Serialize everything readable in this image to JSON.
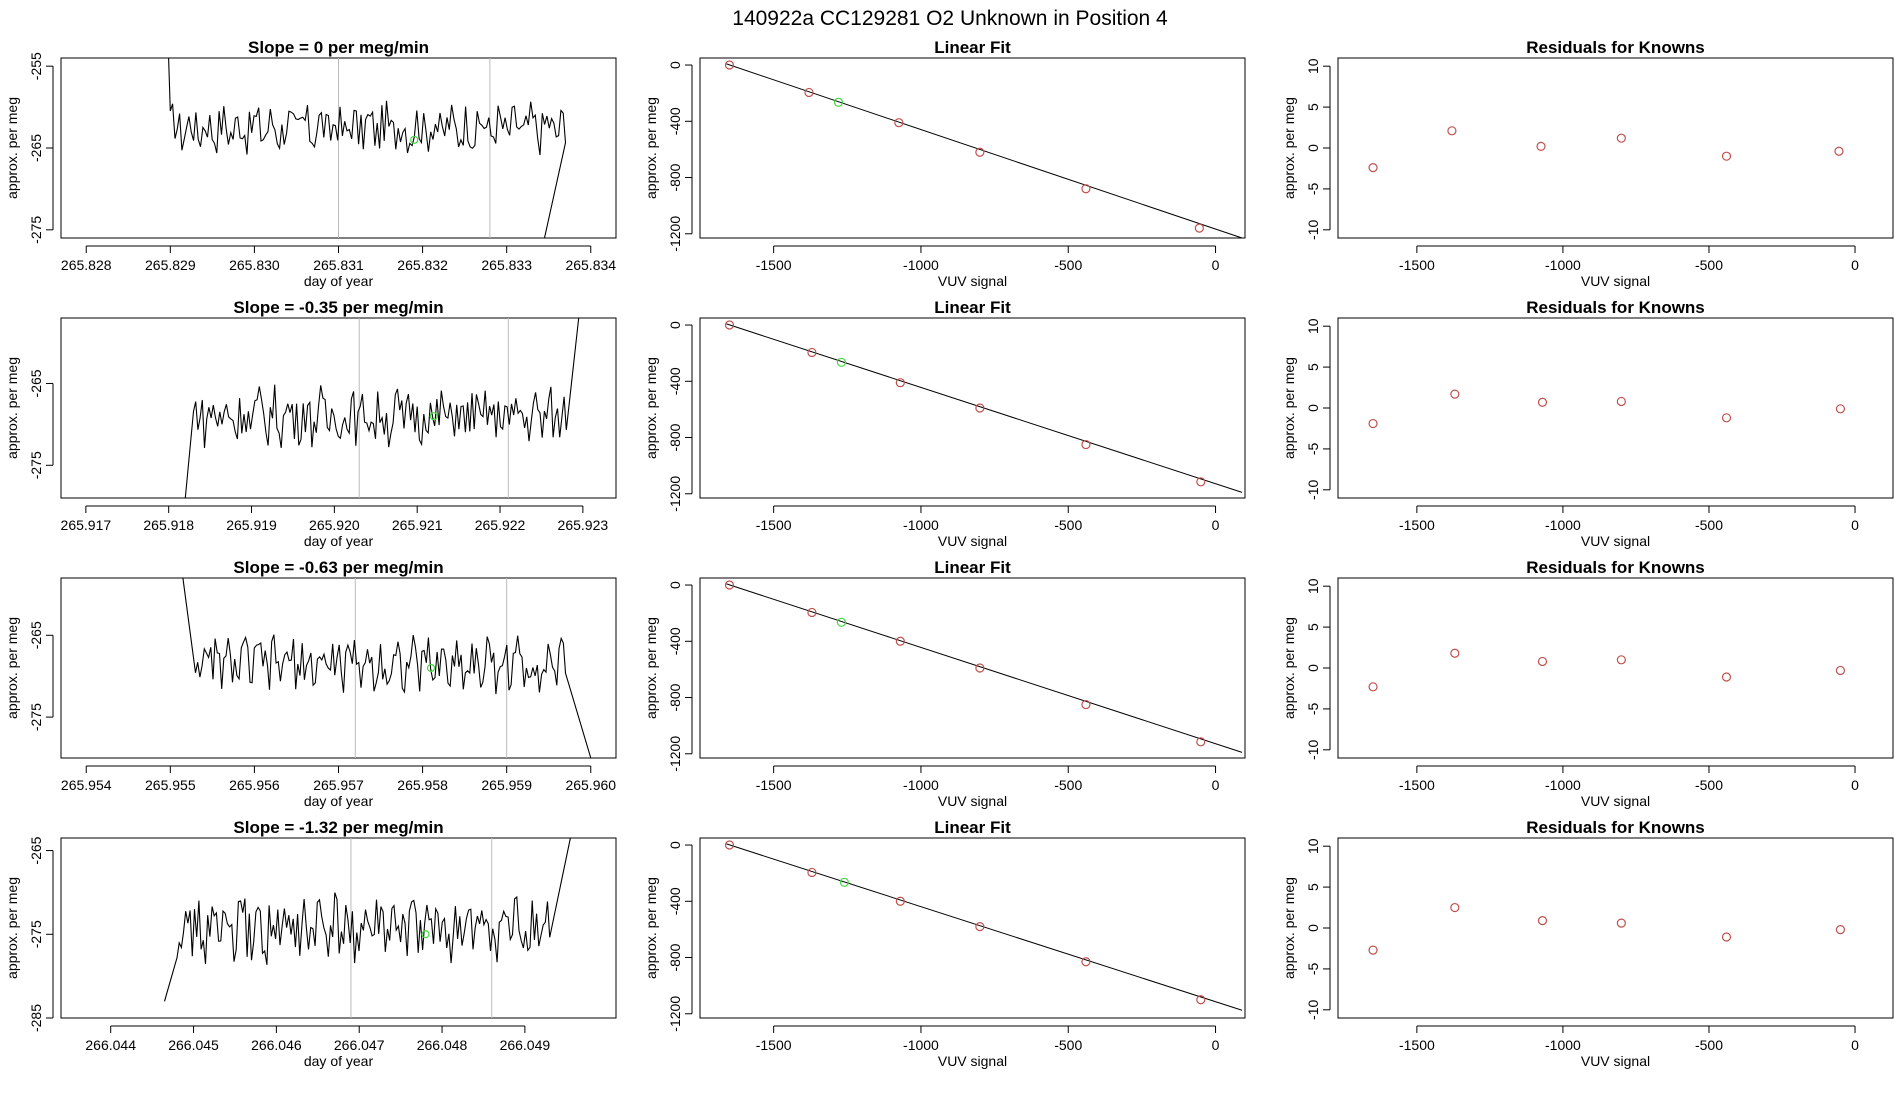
{
  "figure": {
    "title": "140922a      CC129281   O2 Unknown in Position  4",
    "colors": {
      "line": "#000000",
      "known_point": "#c0504d",
      "unknown_point": "#3fdc3f",
      "vline": "#bbbbbb"
    }
  },
  "chart_data": [
    {
      "type": "line",
      "panel": "slope-1",
      "title": "Slope =  0  per meg/min",
      "xlabel": "day of year",
      "ylabel": "approx. per meg",
      "xlim": [
        265.8277,
        265.8343
      ],
      "ylim": [
        -276,
        -254
      ],
      "xticks": [
        265.828,
        265.829,
        265.83,
        265.831,
        265.832,
        265.833,
        265.834
      ],
      "xtick_labels": [
        "265.828",
        "265.829",
        "265.830",
        "265.831",
        "265.832",
        "265.833",
        "265.834"
      ],
      "yticks": [
        -255,
        -265,
        -275
      ],
      "ytick_labels": [
        "-255",
        "-265",
        "-275"
      ],
      "x_start": 265.829,
      "x_end": 265.8337,
      "y_mean": -262.5,
      "y_amp": 2.6,
      "rise_start": -254,
      "rise_x": 265.82898,
      "fall_end": -276,
      "fall_x": 265.83345,
      "vlines": [
        265.831,
        265.8328
      ],
      "marker": {
        "x": 265.8319,
        "y": -264
      }
    },
    {
      "type": "scatter",
      "panel": "fit-1",
      "title": "Linear Fit",
      "xlabel": "VUV signal",
      "ylabel": "approx. per meg",
      "xlim": [
        -1750,
        100
      ],
      "ylim": [
        -1230,
        50
      ],
      "xticks": [
        -1500,
        -1000,
        -500,
        0
      ],
      "xtick_labels": [
        "-1500",
        "-1000",
        "-500",
        "0"
      ],
      "yticks": [
        0,
        -400,
        -800,
        -1200
      ],
      "ytick_labels": [
        "0",
        "-400",
        "-800",
        "-1200"
      ],
      "knowns": [
        [
          -1650,
          0
        ],
        [
          -1380,
          -195
        ],
        [
          -1075,
          -410
        ],
        [
          -800,
          -620
        ],
        [
          -440,
          -880
        ],
        [
          -55,
          -1160
        ]
      ],
      "unknown": [
        -1280,
        -265
      ],
      "fit_line": [
        [
          -1660,
          8
        ],
        [
          90,
          -1230
        ]
      ]
    },
    {
      "type": "scatter",
      "panel": "resid-1",
      "title": "Residuals for Knowns",
      "xlabel": "VUV signal",
      "ylabel": "approx. per meg",
      "xlim": [
        -1770,
        130
      ],
      "ylim": [
        -11,
        11
      ],
      "xticks": [
        -1500,
        -1000,
        -500,
        0
      ],
      "xtick_labels": [
        "-1500",
        "-1000",
        "-500",
        "0"
      ],
      "yticks": [
        10,
        5,
        0,
        -5,
        -10
      ],
      "ytick_labels": [
        "10",
        "5",
        "0",
        "-5",
        "-10"
      ],
      "points": [
        [
          -1650,
          -2.4
        ],
        [
          -1380,
          2.1
        ],
        [
          -1075,
          0.2
        ],
        [
          -800,
          1.2
        ],
        [
          -440,
          -1.0
        ],
        [
          -55,
          -0.4
        ]
      ]
    },
    {
      "type": "line",
      "panel": "slope-2",
      "title": "Slope =  -0.35  per meg/min",
      "xlabel": "day of year",
      "ylabel": "approx. per meg",
      "xlim": [
        265.9167,
        265.9234
      ],
      "ylim": [
        -279,
        -257
      ],
      "xticks": [
        265.917,
        265.918,
        265.919,
        265.92,
        265.921,
        265.922,
        265.923
      ],
      "xtick_labels": [
        "265.917",
        "265.918",
        "265.919",
        "265.920",
        "265.921",
        "265.922",
        "265.923"
      ],
      "yticks": [
        -265,
        -275
      ],
      "ytick_labels": [
        "-265",
        "-275"
      ],
      "x_start": 265.9183,
      "x_end": 265.9228,
      "y_mean": -269,
      "y_amp": 3,
      "rise_start": -279,
      "rise_x": 265.9182,
      "fall_end": -256,
      "fall_x": 265.92295,
      "vlines": [
        265.9203,
        265.9221
      ],
      "marker": {
        "x": 265.9212,
        "y": -269
      }
    },
    {
      "type": "scatter",
      "panel": "fit-2",
      "title": "Linear Fit",
      "xlabel": "VUV signal",
      "ylabel": "approx. per meg",
      "xlim": [
        -1750,
        100
      ],
      "ylim": [
        -1230,
        50
      ],
      "xticks": [
        -1500,
        -1000,
        -500,
        0
      ],
      "xtick_labels": [
        "-1500",
        "-1000",
        "-500",
        "0"
      ],
      "yticks": [
        0,
        -400,
        -800,
        -1200
      ],
      "ytick_labels": [
        "0",
        "-400",
        "-800",
        "-1200"
      ],
      "knowns": [
        [
          -1650,
          0
        ],
        [
          -1370,
          -195
        ],
        [
          -1070,
          -410
        ],
        [
          -800,
          -590
        ],
        [
          -440,
          -850
        ],
        [
          -50,
          -1115
        ]
      ],
      "unknown": [
        -1270,
        -265
      ],
      "fit_line": [
        [
          -1660,
          8
        ],
        [
          90,
          -1190
        ]
      ]
    },
    {
      "type": "scatter",
      "panel": "resid-2",
      "title": "Residuals for Knowns",
      "xlabel": "VUV signal",
      "ylabel": "approx. per meg",
      "xlim": [
        -1770,
        130
      ],
      "ylim": [
        -11,
        11
      ],
      "xticks": [
        -1500,
        -1000,
        -500,
        0
      ],
      "xtick_labels": [
        "-1500",
        "-1000",
        "-500",
        "0"
      ],
      "yticks": [
        10,
        5,
        0,
        -5,
        -10
      ],
      "ytick_labels": [
        "10",
        "5",
        "0",
        "-5",
        "-10"
      ],
      "points": [
        [
          -1650,
          -1.9
        ],
        [
          -1370,
          1.7
        ],
        [
          -1070,
          0.7
        ],
        [
          -800,
          0.8
        ],
        [
          -440,
          -1.2
        ],
        [
          -50,
          -0.1
        ]
      ]
    },
    {
      "type": "line",
      "panel": "slope-3",
      "title": "Slope =  -0.63  per meg/min",
      "xlabel": "day of year",
      "ylabel": "approx. per meg",
      "xlim": [
        265.9537,
        265.9603
      ],
      "ylim": [
        -280,
        -258
      ],
      "xticks": [
        265.954,
        265.955,
        265.956,
        265.957,
        265.958,
        265.959,
        265.96
      ],
      "xtick_labels": [
        "265.954",
        "265.955",
        "265.956",
        "265.957",
        "265.958",
        "265.959",
        "265.960"
      ],
      "yticks": [
        -265,
        -275
      ],
      "ytick_labels": [
        "-265",
        "-275"
      ],
      "x_start": 265.9553,
      "x_end": 265.9597,
      "y_mean": -268.5,
      "y_amp": 2.8,
      "rise_start": -258,
      "rise_x": 265.95515,
      "fall_end": -280,
      "fall_x": 265.96,
      "vlines": [
        265.9572,
        265.959
      ],
      "marker": {
        "x": 265.9581,
        "y": -269
      }
    },
    {
      "type": "scatter",
      "panel": "fit-3",
      "title": "Linear Fit",
      "xlabel": "VUV signal",
      "ylabel": "approx. per meg",
      "xlim": [
        -1750,
        100
      ],
      "ylim": [
        -1230,
        50
      ],
      "xticks": [
        -1500,
        -1000,
        -500,
        0
      ],
      "xtick_labels": [
        "-1500",
        "-1000",
        "-500",
        "0"
      ],
      "yticks": [
        0,
        -400,
        -800,
        -1200
      ],
      "ytick_labels": [
        "0",
        "-400",
        "-800",
        "-1200"
      ],
      "knowns": [
        [
          -1650,
          0
        ],
        [
          -1370,
          -195
        ],
        [
          -1070,
          -400
        ],
        [
          -800,
          -590
        ],
        [
          -440,
          -850
        ],
        [
          -50,
          -1115
        ]
      ],
      "unknown": [
        -1270,
        -265
      ],
      "fit_line": [
        [
          -1660,
          8
        ],
        [
          90,
          -1190
        ]
      ]
    },
    {
      "type": "scatter",
      "panel": "resid-3",
      "title": "Residuals for Knowns",
      "xlabel": "VUV signal",
      "ylabel": "approx. per meg",
      "xlim": [
        -1770,
        130
      ],
      "ylim": [
        -11,
        11
      ],
      "xticks": [
        -1500,
        -1000,
        -500,
        0
      ],
      "xtick_labels": [
        "-1500",
        "-1000",
        "-500",
        "0"
      ],
      "yticks": [
        10,
        5,
        0,
        -5,
        -10
      ],
      "ytick_labels": [
        "10",
        "5",
        "0",
        "-5",
        "-10"
      ],
      "points": [
        [
          -1650,
          -2.3
        ],
        [
          -1370,
          1.8
        ],
        [
          -1070,
          0.8
        ],
        [
          -800,
          1.0
        ],
        [
          -440,
          -1.1
        ],
        [
          -50,
          -0.3
        ]
      ]
    },
    {
      "type": "line",
      "panel": "slope-4",
      "title": "Slope =  -1.32  per meg/min",
      "xlabel": "day of year",
      "ylabel": "approx. per meg",
      "xlim": [
        266.0434,
        266.0501
      ],
      "ylim": [
        -285,
        -263.5
      ],
      "xticks": [
        266.044,
        266.045,
        266.046,
        266.047,
        266.048,
        266.049
      ],
      "xtick_labels": [
        "266.044",
        "266.045",
        "266.046",
        "266.047",
        "266.048",
        "266.049"
      ],
      "yticks": [
        -265,
        -275,
        -285
      ],
      "ytick_labels": [
        "-265",
        "-275",
        "-285"
      ],
      "x_start": 266.0448,
      "x_end": 266.0493,
      "y_mean": -274.5,
      "y_amp": 3.4,
      "rise_start": -283,
      "rise_x": 266.04465,
      "fall_end": -263.5,
      "fall_x": 266.04955,
      "vlines": [
        266.0469,
        266.0486
      ],
      "marker": {
        "x": 266.0478,
        "y": -275
      }
    },
    {
      "type": "scatter",
      "panel": "fit-4",
      "title": "Linear Fit",
      "xlabel": "VUV signal",
      "ylabel": "approx. per meg",
      "xlim": [
        -1750,
        100
      ],
      "ylim": [
        -1230,
        50
      ],
      "xticks": [
        -1500,
        -1000,
        -500,
        0
      ],
      "xtick_labels": [
        "-1500",
        "-1000",
        "-500",
        "0"
      ],
      "yticks": [
        0,
        -400,
        -800,
        -1200
      ],
      "ytick_labels": [
        "0",
        "-400",
        "-800",
        "-1200"
      ],
      "knowns": [
        [
          -1650,
          0
        ],
        [
          -1370,
          -195
        ],
        [
          -1070,
          -400
        ],
        [
          -800,
          -580
        ],
        [
          -440,
          -830
        ],
        [
          -50,
          -1100
        ]
      ],
      "unknown": [
        -1260,
        -265
      ],
      "fit_line": [
        [
          -1660,
          8
        ],
        [
          90,
          -1175
        ]
      ]
    },
    {
      "type": "scatter",
      "panel": "resid-4",
      "title": "Residuals for Knowns",
      "xlabel": "VUV signal",
      "ylabel": "approx. per meg",
      "xlim": [
        -1770,
        130
      ],
      "ylim": [
        -11,
        11
      ],
      "xticks": [
        -1500,
        -1000,
        -500,
        0
      ],
      "xtick_labels": [
        "-1500",
        "-1000",
        "-500",
        "0"
      ],
      "yticks": [
        10,
        5,
        0,
        -5,
        -10
      ],
      "ytick_labels": [
        "10",
        "5",
        "0",
        "-5",
        "-10"
      ],
      "points": [
        [
          -1650,
          -2.7
        ],
        [
          -1370,
          2.5
        ],
        [
          -1070,
          0.9
        ],
        [
          -800,
          0.6
        ],
        [
          -440,
          -1.1
        ],
        [
          -50,
          -0.2
        ]
      ]
    }
  ]
}
